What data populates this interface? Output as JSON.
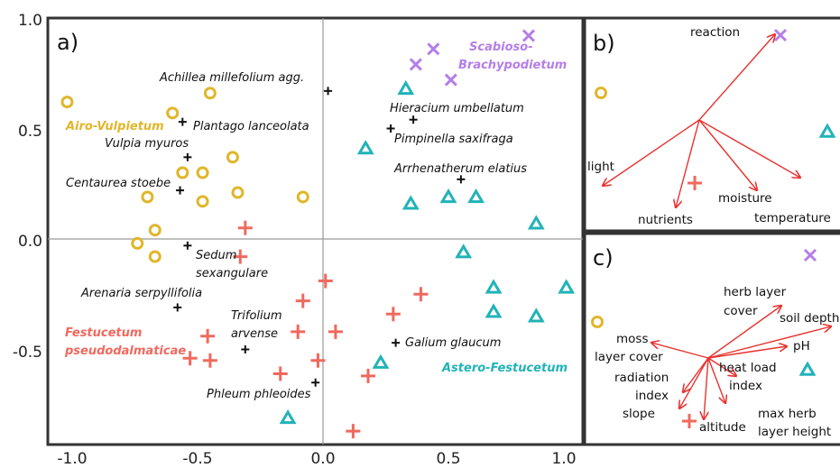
{
  "colors": {
    "airo": "#e0b62a",
    "festucetum": "#f0695e",
    "astero": "#21b3b8",
    "scabioso": "#b57ee8",
    "species": "#111111",
    "vector": "#e8322f",
    "frame": "#333333",
    "axis_zero": "#999999"
  },
  "chart_data": [
    {
      "panel": "a)",
      "type": "scatter",
      "xlim": [
        -1.12,
        1.08
      ],
      "ylim": [
        -0.98,
        1.0
      ],
      "xticks": [
        "-1.0",
        "-0.5",
        "0.0",
        "0.5",
        "1.0"
      ],
      "xtick_values": [
        -1.0,
        -0.5,
        0.0,
        0.5,
        1.0
      ],
      "yticks": [
        "1.0",
        "0.5",
        "0.0",
        "-0.5"
      ],
      "ytick_values": [
        1.0,
        0.5,
        0.0,
        -0.5
      ],
      "zero_lines": true,
      "groups": [
        {
          "name": "Airo-Vulpietum",
          "marker": "circle",
          "color_key": "airo",
          "points": [
            [
              -1.02,
              0.62
            ],
            [
              -0.45,
              0.66
            ],
            [
              -0.6,
              0.57
            ],
            [
              -0.36,
              0.37
            ],
            [
              -0.56,
              0.3
            ],
            [
              -0.48,
              0.3
            ],
            [
              -0.34,
              0.21
            ],
            [
              -0.7,
              0.19
            ],
            [
              -0.48,
              0.17
            ],
            [
              -0.08,
              0.19
            ],
            [
              -0.67,
              0.04
            ],
            [
              -0.74,
              -0.02
            ],
            [
              -0.67,
              -0.08
            ]
          ]
        },
        {
          "name": "Festucetum pseudodalmaticae",
          "marker": "plus",
          "color_key": "festucetum",
          "points": [
            [
              -0.31,
              0.05
            ],
            [
              -0.33,
              -0.08
            ],
            [
              0.01,
              -0.19
            ],
            [
              0.39,
              -0.25
            ],
            [
              -0.08,
              -0.28
            ],
            [
              0.28,
              -0.34
            ],
            [
              -0.1,
              -0.42
            ],
            [
              0.05,
              -0.42
            ],
            [
              -0.46,
              -0.44
            ],
            [
              -0.53,
              -0.54
            ],
            [
              -0.45,
              -0.55
            ],
            [
              -0.02,
              -0.55
            ],
            [
              -0.17,
              -0.61
            ],
            [
              0.18,
              -0.62
            ],
            [
              0.12,
              -0.87
            ]
          ]
        },
        {
          "name": "Astero-Festucetum",
          "marker": "triangle",
          "color_key": "astero",
          "points": [
            [
              0.33,
              0.68
            ],
            [
              0.17,
              0.41
            ],
            [
              0.35,
              0.16
            ],
            [
              0.5,
              0.19
            ],
            [
              0.61,
              0.19
            ],
            [
              0.85,
              0.07
            ],
            [
              0.56,
              -0.06
            ],
            [
              0.68,
              -0.22
            ],
            [
              0.97,
              -0.22
            ],
            [
              0.68,
              -0.33
            ],
            [
              0.85,
              -0.35
            ],
            [
              0.23,
              -0.56
            ],
            [
              -0.14,
              -0.81
            ]
          ]
        },
        {
          "name": "Scabioso-Brachypodietum",
          "marker": "x",
          "color_key": "scabioso",
          "points": [
            [
              0.82,
              0.92
            ],
            [
              0.44,
              0.86
            ],
            [
              0.37,
              0.79
            ],
            [
              0.51,
              0.72
            ]
          ]
        }
      ],
      "species": [
        {
          "name": "Achillea millefolium agg.",
          "x": 0.02,
          "y": 0.67
        },
        {
          "name": "Plantago lanceolata",
          "x": -0.56,
          "y": 0.53
        },
        {
          "name": "Hieracium umbellatum",
          "x": 0.36,
          "y": 0.54
        },
        {
          "name": "Pimpinella saxifraga",
          "x": 0.27,
          "y": 0.5
        },
        {
          "name": "Vulpia myuros",
          "x": -0.54,
          "y": 0.37
        },
        {
          "name": "Arrhenatherum elatius",
          "x": 0.55,
          "y": 0.27
        },
        {
          "name": "Centaurea stoebe",
          "x": -0.57,
          "y": 0.22
        },
        {
          "name": "Sedum sexangulare",
          "x": -0.54,
          "y": -0.03
        },
        {
          "name": "Arenaria serpyllifolia",
          "x": -0.58,
          "y": -0.31
        },
        {
          "name": "Galium glaucum",
          "x": 0.29,
          "y": -0.47
        },
        {
          "name": "Trifolium arvense",
          "x": -0.31,
          "y": -0.5
        },
        {
          "name": "Phleum phleoides",
          "x": -0.03,
          "y": -0.65
        }
      ],
      "species_labels": {
        "achillea": "Achillea millefolium agg.",
        "plantago": "Plantago lanceolata",
        "hieracium": "Hieracium umbellatum",
        "pimpinella": "Pimpinella saxifraga",
        "vulpia": "Vulpia myuros",
        "arrhenatherum": "Arrhenatherum elatius",
        "centaurea": "Centaurea stoebe",
        "sedum_1": "Sedum",
        "sedum_2": "sexangulare",
        "arenaria": "Arenaria serpyllifolia",
        "galium": "Galium glaucum",
        "trifolium_1": "Trifolium",
        "trifolium_2": "arvense",
        "phleum": "Phleum phleoides"
      },
      "group_labels": {
        "airo": "Airo-Vulpietum",
        "festucetum_1": "Festucetum",
        "festucetum_2": "pseudodalmaticae",
        "astero": "Astero-Festucetum",
        "scabioso_1": "Scabioso-",
        "scabioso_2": "Brachypodietum"
      }
    },
    {
      "panel": "b)",
      "type": "biplot",
      "vectors": [
        "reaction",
        "light",
        "nutrients",
        "moisture",
        "temperature"
      ],
      "group_markers": [
        "Airo-Vulpietum",
        "Festucetum pseudodalmaticae",
        "Astero-Festucetum",
        "Scabioso-Brachypodietum"
      ],
      "labels": {
        "reaction": "reaction",
        "light": "light",
        "nutrients": "nutrients",
        "moisture": "moisture",
        "temperature": "temperature"
      }
    },
    {
      "panel": "c)",
      "type": "biplot",
      "vectors": [
        "herb layer cover",
        "soil depth",
        "pH",
        "moss layer cover",
        "heat load index",
        "radiation index",
        "slope",
        "altitude",
        "max herb layer height"
      ],
      "group_markers": [
        "Airo-Vulpietum",
        "Festucetum pseudodalmaticae",
        "Astero-Festucetum",
        "Scabioso-Brachypodietum"
      ],
      "labels": {
        "herb_1": "herb layer",
        "herb_2": "cover",
        "soil": "soil depth",
        "ph": "pH",
        "moss_1": "moss",
        "moss_2": "layer cover",
        "heat_1": "heat load",
        "heat_2": "index",
        "rad_1": "radiation",
        "rad_2": "index",
        "slope": "slope",
        "altitude": "altitude",
        "maxh_1": "max herb",
        "maxh_2": "layer height"
      }
    }
  ]
}
